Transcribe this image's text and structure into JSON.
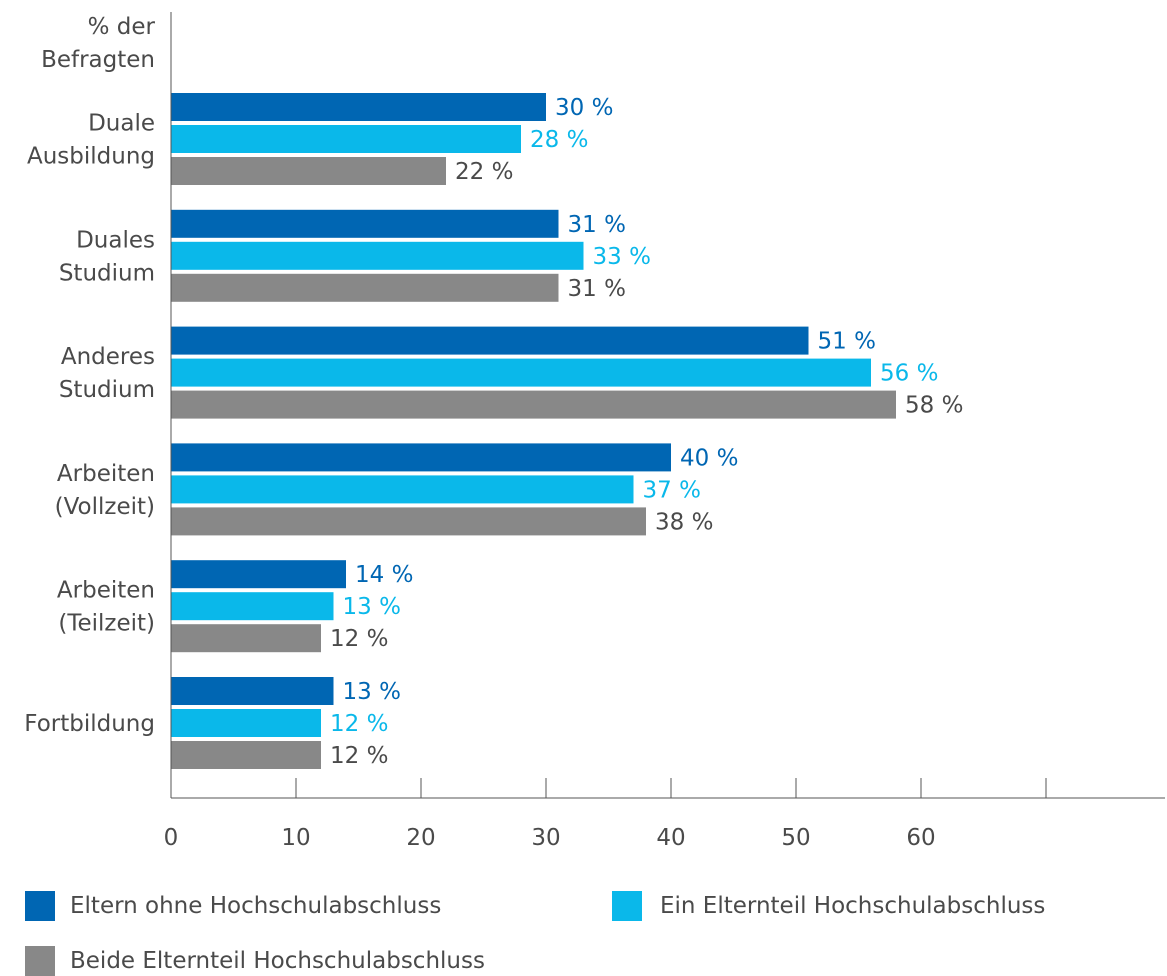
{
  "chart_data": {
    "type": "bar",
    "orientation": "horizontal",
    "ylabel": [
      "% der",
      "Befragten"
    ],
    "categories": [
      [
        "Duale",
        "Ausbildung"
      ],
      [
        "Duales",
        "Studium"
      ],
      [
        "Anderes",
        "Studium"
      ],
      [
        "Arbeiten",
        "(Vollzeit)"
      ],
      [
        "Arbeiten",
        "(Teilzeit)"
      ],
      [
        "Fortbildung"
      ]
    ],
    "series": [
      {
        "name": "Eltern ohne Hochschulabschluss",
        "color": "#0066b3",
        "values": [
          30,
          31,
          51,
          40,
          14,
          13
        ],
        "labels": [
          "30 %",
          "31 %",
          "51 %",
          "40 %",
          "14 %",
          "13 %"
        ]
      },
      {
        "name": "Ein Elternteil Hochschulabschluss",
        "color": "#0ab8ea",
        "values": [
          28,
          33,
          56,
          37,
          13,
          12
        ],
        "labels": [
          "28 %",
          "33 %",
          "56 %",
          "37 %",
          "13 %",
          "12 %"
        ]
      },
      {
        "name": "Beide Elternteil Hochschulabschluss",
        "color": "#888888",
        "values": [
          22,
          31,
          58,
          38,
          12,
          12
        ],
        "labels": [
          "22 %",
          "31 %",
          "58 %",
          "38 %",
          "12 %",
          "12 %"
        ]
      }
    ],
    "value_label_colors": [
      "#0066b3",
      "#0ab8ea",
      "#4a4a4a"
    ],
    "xticks": [
      0,
      10,
      20,
      30,
      40,
      50,
      60
    ],
    "xlim": [
      0,
      79
    ],
    "grid": false,
    "legend_position": "bottom"
  }
}
